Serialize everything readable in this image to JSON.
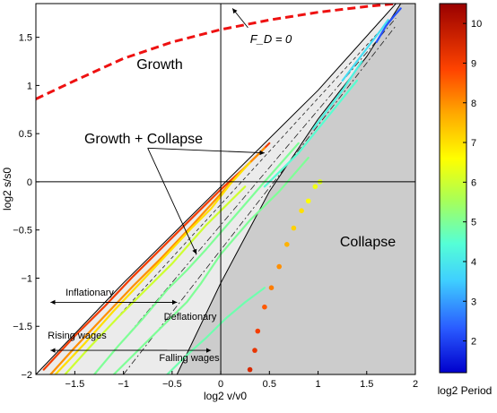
{
  "chart_data": {
    "type": "line",
    "xlabel": "log2 v/v0",
    "ylabel": "log2 s/s0",
    "xlim": [
      -1.9,
      2.0
    ],
    "ylim": [
      -2.0,
      1.85
    ],
    "xticks": [
      -1.5,
      -1,
      -0.5,
      0,
      0.5,
      1,
      1.5,
      2
    ],
    "xtick_labels": [
      "−1.5",
      "−1",
      "−0.5",
      "0",
      "0.5",
      "1",
      "1.5",
      "2"
    ],
    "yticks": [
      -2,
      -1.5,
      -1,
      -0.5,
      0,
      0.5,
      1,
      1.5
    ],
    "ytick_labels": [
      "−2",
      "−1.5",
      "−1",
      "−0.5",
      "0",
      "0.5",
      "1",
      "1.5"
    ],
    "grid": false,
    "colorbar": {
      "label": "log2 Period",
      "min": 1.2,
      "max": 10.5,
      "ticks": [
        2,
        3,
        4,
        5,
        6,
        7,
        8,
        9,
        10
      ],
      "tick_labels": [
        "2",
        "3",
        "4",
        "5",
        "6",
        "7",
        "8",
        "9",
        "10"
      ]
    },
    "regions": [
      {
        "label": "Growth",
        "color": "#ffffff",
        "anchor": [
          -0.4,
          1.25
        ]
      },
      {
        "label": "Growth + Collapse",
        "color": "#ebebeb",
        "anchor": [
          -0.5,
          0.5
        ]
      },
      {
        "label": "Collapse",
        "color": "#cccccc",
        "anchor": [
          1.25,
          -0.6
        ]
      }
    ],
    "boundaries": [
      {
        "name": "upper",
        "x": [
          -1.9,
          -1.0,
          0.0,
          1.0,
          1.8
        ],
        "y": [
          -2.0,
          -1.05,
          -0.05,
          0.95,
          1.85
        ]
      },
      {
        "name": "lower",
        "x": [
          -0.45,
          0.0,
          0.5,
          1.0,
          1.5,
          1.85
        ],
        "y": [
          -2.0,
          -1.05,
          -0.1,
          0.65,
          1.3,
          1.85
        ]
      }
    ],
    "fd_zero_curve": {
      "label": "F_D = 0",
      "color": "#ee1111",
      "x": [
        -1.9,
        -1.5,
        -1.0,
        -0.5,
        0.0,
        0.5,
        1.0,
        1.5,
        1.8
      ],
      "y": [
        0.86,
        1.05,
        1.28,
        1.45,
        1.58,
        1.68,
        1.76,
        1.82,
        1.85
      ]
    },
    "orbits": [
      {
        "period": 9.0,
        "x": [
          -1.82,
          -1.5,
          -1.2,
          -0.9,
          -0.6,
          -0.3,
          0.0,
          0.25,
          0.5
        ],
        "y": [
          -1.95,
          -1.6,
          -1.3,
          -0.98,
          -0.68,
          -0.38,
          -0.08,
          0.15,
          0.4
        ]
      },
      {
        "period": 8.0,
        "x": [
          -1.75,
          -1.5,
          -1.2,
          -0.9,
          -0.6,
          -0.3,
          -0.05,
          0.2,
          0.45
        ],
        "y": [
          -2.0,
          -1.72,
          -1.4,
          -1.08,
          -0.78,
          -0.46,
          -0.18,
          0.1,
          0.35
        ]
      },
      {
        "period": 7.0,
        "x": [
          -1.7,
          -1.4,
          -1.1,
          -0.8,
          -0.55,
          -0.3,
          -0.1,
          0.1,
          0.3
        ],
        "y": [
          -2.0,
          -1.68,
          -1.34,
          -1.02,
          -0.75,
          -0.48,
          -0.28,
          -0.02,
          0.2
        ]
      },
      {
        "period": 6.0,
        "x": [
          -1.6,
          -1.35,
          -1.05,
          -0.75,
          -0.5,
          -0.3,
          -0.15,
          0.05,
          0.25
        ],
        "y": [
          -2.0,
          -1.72,
          -1.4,
          -1.1,
          -0.85,
          -0.62,
          -0.45,
          -0.25,
          -0.05
        ]
      },
      {
        "period": 5.0,
        "x": [
          -1.3,
          -1.05,
          -0.8,
          -0.55,
          -0.35,
          -0.15,
          0.15,
          0.45,
          0.8
        ],
        "y": [
          -2.0,
          -1.7,
          -1.42,
          -1.12,
          -0.92,
          -0.7,
          -0.35,
          0.0,
          0.4
        ]
      },
      {
        "period": 5.0,
        "x": [
          -1.1,
          -0.85,
          -0.6,
          -0.35,
          -0.2,
          0.0,
          0.3,
          0.6,
          0.9
        ],
        "y": [
          -2.0,
          -1.75,
          -1.5,
          -1.25,
          -1.05,
          -0.75,
          -0.4,
          -0.1,
          0.25
        ]
      },
      {
        "period": 4.8,
        "x": [
          -0.55,
          -0.35,
          -0.15,
          0.05,
          0.25,
          0.45
        ],
        "y": [
          -2.0,
          -1.8,
          -1.62,
          -1.42,
          -1.25,
          -1.1
        ]
      },
      {
        "period": 4.5,
        "x": [
          0.45,
          0.6,
          0.8,
          1.0,
          1.2,
          1.4
        ],
        "y": [
          -0.05,
          0.1,
          0.3,
          0.55,
          0.8,
          1.05
        ]
      },
      {
        "period": 4.2,
        "x": [
          0.95,
          1.1,
          1.25,
          1.35,
          1.45
        ],
        "y": [
          0.55,
          0.75,
          0.95,
          1.1,
          1.25
        ]
      },
      {
        "period": 3.8,
        "x": [
          1.25,
          1.4,
          1.55,
          1.65,
          1.72
        ],
        "y": [
          1.05,
          1.25,
          1.45,
          1.58,
          1.68
        ]
      },
      {
        "period": 2.2,
        "x": [
          1.6,
          1.7,
          1.78,
          1.85
        ],
        "y": [
          1.45,
          1.62,
          1.72,
          1.8
        ]
      }
    ],
    "collapse_points": {
      "x": [
        0.3,
        0.35,
        0.38,
        0.45,
        0.52,
        0.6,
        0.68,
        0.75,
        0.83,
        0.9,
        0.97,
        1.02
      ],
      "y": [
        -1.95,
        -1.75,
        -1.55,
        -1.3,
        -1.1,
        -0.88,
        -0.65,
        -0.48,
        -0.3,
        -0.2,
        -0.05,
        0.0
      ],
      "period": [
        9.5,
        9.2,
        9.0,
        8.6,
        8.2,
        8.0,
        7.6,
        7.2,
        7.0,
        6.6,
        6.4,
        6.2
      ]
    },
    "annotations": {
      "growth": "Growth",
      "growth_collapse": "Growth + Collapse",
      "collapse": "Collapse",
      "fd_zero": "F_D = 0",
      "inflationary": "Inflationary",
      "deflationary": "Deflationary",
      "rising_wages": "Rising wages",
      "falling_wages": "Falling wages"
    },
    "arrows": [
      {
        "name": "inflationary-arrow",
        "x": [
          -0.45,
          -1.75
        ],
        "y": [
          -1.25,
          -1.25
        ]
      },
      {
        "name": "deflationary-arrow",
        "x": [
          -1.2,
          -0.45
        ],
        "y": [
          -1.25,
          -1.25
        ]
      },
      {
        "name": "rising-wages-arrow",
        "x": [
          -0.55,
          -1.75
        ],
        "y": [
          -1.75,
          -1.75
        ]
      },
      {
        "name": "falling-wages-arrow",
        "x": [
          -1.1,
          -0.1
        ],
        "y": [
          -1.75,
          -1.75
        ]
      },
      {
        "name": "fd-zero-pointer",
        "x": [
          0.28,
          0.12
        ],
        "y": [
          1.6,
          1.8
        ]
      },
      {
        "name": "gc-pointer-right",
        "x": [
          -0.75,
          0.45
        ],
        "y": [
          0.35,
          0.3
        ]
      },
      {
        "name": "gc-pointer-down",
        "x": [
          -0.75,
          -0.25
        ],
        "y": [
          0.35,
          -0.75
        ]
      }
    ]
  }
}
